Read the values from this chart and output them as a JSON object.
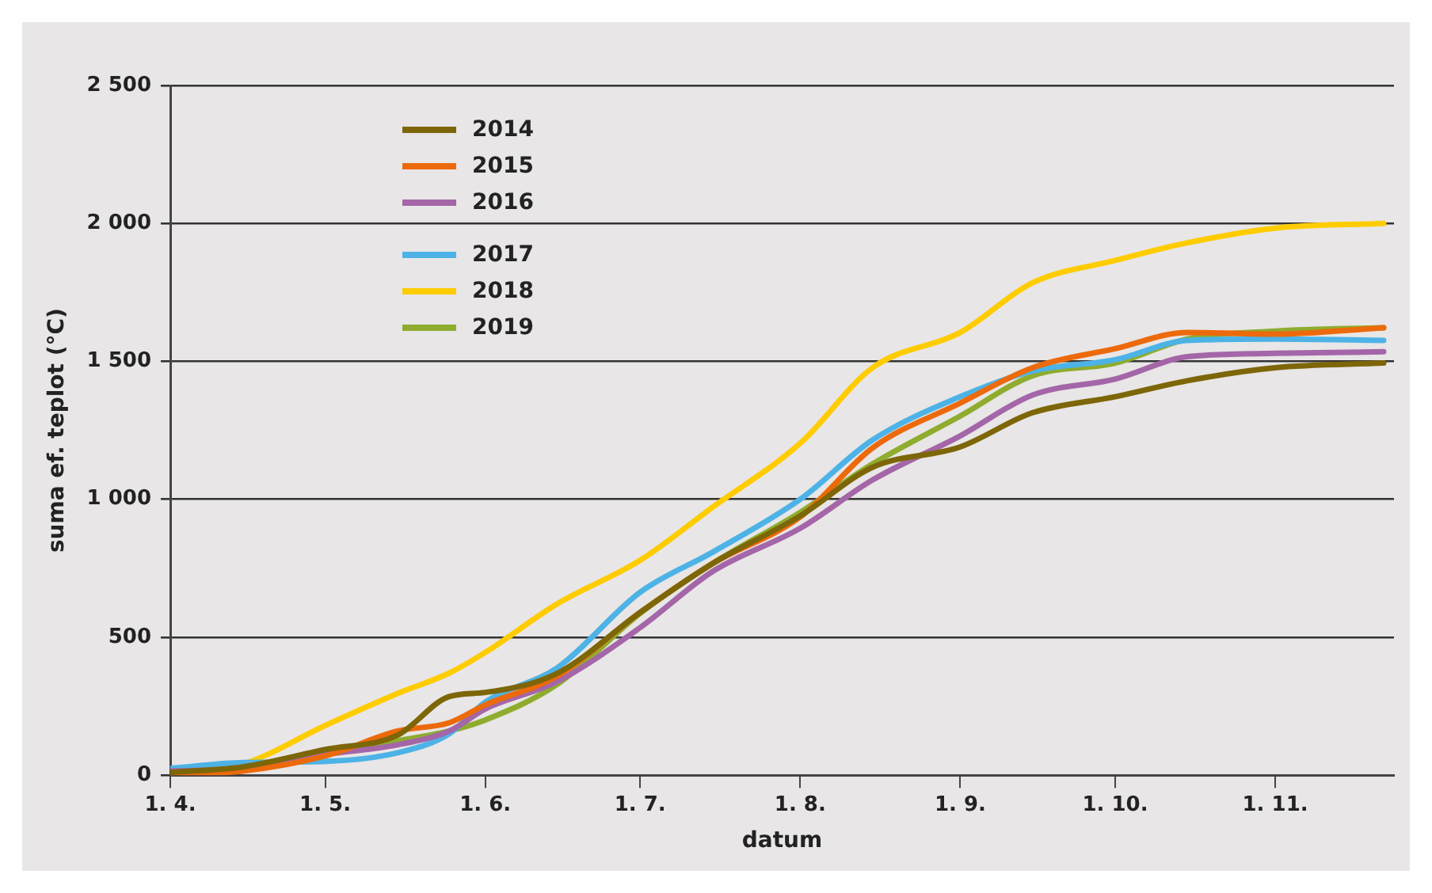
{
  "chart_data": {
    "type": "line",
    "xlabel": "datum",
    "ylabel": "suma ef. teplot (°C)",
    "x": [
      "--04-01",
      "--04-15",
      "--05-01",
      "--05-15",
      "--05-25",
      "--06-01",
      "--06-15",
      "--07-01",
      "--07-15",
      "--08-01",
      "--08-15",
      "--09-01",
      "--09-15",
      "--10-01",
      "--10-15",
      "--11-01",
      "--11-22"
    ],
    "series": [
      {
        "name": "2014",
        "color": "#7d6608",
        "values": [
          10,
          30,
          93,
          145,
          285,
          300,
          370,
          590,
          767,
          940,
          1116,
          1190,
          1314,
          1372,
          1430,
          1477,
          1494
        ]
      },
      {
        "name": "2015",
        "color": "#ec6a0c",
        "values": [
          0,
          15,
          70,
          160,
          190,
          255,
          360,
          590,
          767,
          936,
          1186,
          1349,
          1477,
          1546,
          1605,
          1599,
          1622
        ]
      },
      {
        "name": "2016",
        "color": "#a466a8",
        "values": [
          15,
          25,
          75,
          110,
          160,
          240,
          340,
          535,
          738,
          895,
          1070,
          1230,
          1378,
          1436,
          1517,
          1529,
          1535
        ]
      },
      {
        "name": "2017",
        "color": "#4db3e6",
        "values": [
          25,
          46,
          50,
          81,
          150,
          265,
          390,
          663,
          808,
          1000,
          1215,
          1372,
          1465,
          1506,
          1576,
          1581,
          1576
        ]
      },
      {
        "name": "2018",
        "color": "#ffcc00",
        "values": [
          10,
          40,
          180,
          296,
          370,
          445,
          622,
          779,
          971,
          1203,
          1477,
          1605,
          1785,
          1866,
          1930,
          1983,
          2000
        ]
      },
      {
        "name": "2019",
        "color": "#8fac2e",
        "values": [
          15,
          30,
          90,
          125,
          160,
          200,
          330,
          587,
          767,
          953,
          1128,
          1302,
          1448,
          1494,
          1581,
          1610,
          1622
        ]
      }
    ],
    "xlim": [
      "--04-01",
      "--11-24"
    ],
    "xticks": [
      {
        "value": "--04-01",
        "label": "1. 4."
      },
      {
        "value": "--05-01",
        "label": "1. 5."
      },
      {
        "value": "--06-01",
        "label": "1. 6."
      },
      {
        "value": "--07-01",
        "label": "1. 7."
      },
      {
        "value": "--08-01",
        "label": "1. 8."
      },
      {
        "value": "--09-01",
        "label": "1. 9."
      },
      {
        "value": "--10-01",
        "label": "1. 10."
      },
      {
        "value": "--11-01",
        "label": "1. 11."
      }
    ],
    "ylim": [
      0,
      2500
    ],
    "yticks": [
      0,
      500,
      {
        "value": 1000,
        "label": "1 000"
      },
      {
        "value": 1500,
        "label": "1 500"
      },
      {
        "value": 2000,
        "label": "2 000"
      },
      {
        "value": 2500,
        "label": "2 500"
      }
    ],
    "grid": "y",
    "legend": "top left",
    "marker": "none",
    "line_style": "solid"
  }
}
